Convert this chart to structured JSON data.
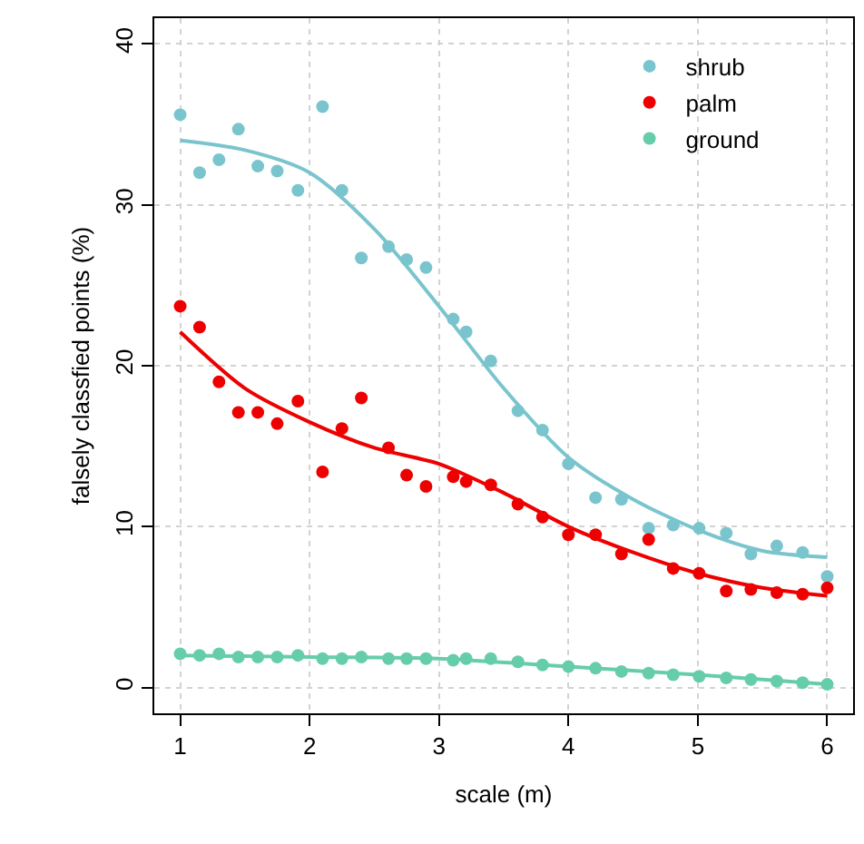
{
  "chart_data": {
    "type": "scatter",
    "xlabel": "scale (m)",
    "ylabel": "falsely classfied points (%)",
    "xlim": [
      0.8,
      6.2
    ],
    "ylim": [
      -1.6,
      41.6
    ],
    "xticks": [
      1,
      2,
      3,
      4,
      5,
      6
    ],
    "yticks": [
      0,
      10,
      20,
      30,
      40
    ],
    "grid": true,
    "legend": "top right",
    "marker": "circle",
    "x": [
      1.0,
      1.15,
      1.3,
      1.45,
      1.6,
      1.75,
      1.91,
      2.1,
      2.25,
      2.4,
      2.61,
      2.75,
      2.9,
      3.11,
      3.21,
      3.4,
      3.61,
      3.8,
      4.0,
      4.21,
      4.41,
      4.62,
      4.81,
      5.01,
      5.22,
      5.41,
      5.61,
      5.81,
      6.0
    ],
    "series": [
      {
        "name": "shrub",
        "color": "#7ac5cd",
        "values": [
          35.6,
          32.0,
          32.8,
          34.7,
          32.4,
          32.1,
          30.9,
          36.1,
          30.9,
          26.7,
          27.4,
          26.6,
          26.1,
          22.9,
          22.1,
          20.3,
          17.2,
          16.0,
          13.9,
          11.8,
          11.7,
          9.9,
          10.1,
          9.9,
          9.6,
          8.3,
          8.8,
          8.4,
          6.9
        ]
      },
      {
        "name": "palm",
        "color": "#ee0000",
        "values": [
          23.7,
          22.4,
          19.0,
          17.1,
          17.1,
          16.4,
          17.8,
          13.4,
          16.1,
          18.0,
          14.9,
          13.2,
          12.5,
          13.1,
          12.8,
          12.6,
          11.4,
          10.6,
          9.5,
          9.5,
          8.3,
          9.2,
          7.4,
          7.1,
          6.0,
          6.1,
          5.9,
          5.8,
          6.2
        ]
      },
      {
        "name": "ground",
        "color": "#66cdaa",
        "values": [
          2.1,
          2.0,
          2.1,
          1.9,
          1.9,
          1.9,
          2.0,
          1.8,
          1.8,
          1.9,
          1.8,
          1.8,
          1.8,
          1.7,
          1.8,
          1.8,
          1.6,
          1.4,
          1.3,
          1.2,
          1.0,
          0.9,
          0.8,
          0.7,
          0.6,
          0.5,
          0.4,
          0.3,
          0.2
        ]
      },
      {
        "type": "line",
        "marker": "none",
        "color": "#7ac5cd",
        "x": [
          1,
          1.5,
          2,
          2.5,
          3,
          3.5,
          4,
          4.5,
          5,
          5.5,
          6
        ],
        "values": [
          34.0,
          33.4,
          32.0,
          28.5,
          23.7,
          18.6,
          14.3,
          11.7,
          9.8,
          8.5,
          8.1
        ]
      },
      {
        "type": "line",
        "marker": "none",
        "color": "#ee0000",
        "x": [
          1,
          1.5,
          2,
          2.5,
          3,
          3.5,
          4,
          4.5,
          5,
          5.5,
          6
        ],
        "values": [
          22.1,
          18.6,
          16.5,
          14.9,
          13.9,
          12.1,
          10.0,
          8.4,
          7.1,
          6.2,
          5.7
        ]
      },
      {
        "type": "line",
        "marker": "none",
        "color": "#66cdaa",
        "x": [
          1,
          2,
          3,
          4,
          5,
          6
        ],
        "values": [
          2.0,
          1.9,
          1.8,
          1.3,
          0.8,
          0.2
        ]
      }
    ]
  }
}
